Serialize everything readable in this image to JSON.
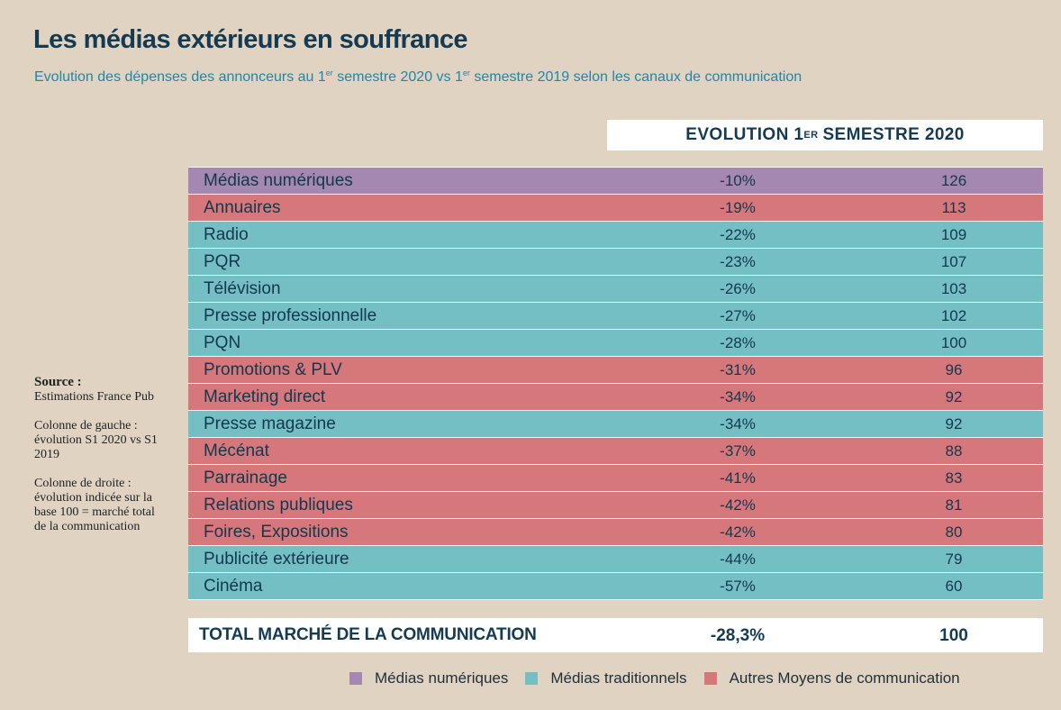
{
  "title": "Les médias extérieurs en souffrance",
  "subtitle": {
    "part1": "Evolution des dépenses des annonceurs au 1",
    "sup1": "er",
    "part2": " semestre 2020 vs  1",
    "sup2": "er",
    "part3": " semestre 2019 selon les canaux de communication"
  },
  "column_header": {
    "part1": "EVOLUTION 1",
    "sup": "ER",
    "part2": "SEMESTRE 2020"
  },
  "colors": {
    "Médias numériques": "#a488b1",
    "Médias traditionnels": "#74bfc3",
    "Autres Moyens de communication": "#d6777b"
  },
  "chart_data": {
    "type": "table",
    "title": "Les médias extérieurs en souffrance",
    "columns": [
      "",
      "EVOLUTION 1ER SEMESTRE 2020",
      ""
    ],
    "rows": [
      {
        "label": "Médias numériques",
        "evolution": "-10%",
        "index": "126",
        "category": "Médias numériques"
      },
      {
        "label": "Annuaires",
        "evolution": "-19%",
        "index": "113",
        "category": "Autres Moyens de communication"
      },
      {
        "label": "Radio",
        "evolution": "-22%",
        "index": "109",
        "category": "Médias traditionnels"
      },
      {
        "label": "PQR",
        "evolution": "-23%",
        "index": "107",
        "category": "Médias traditionnels"
      },
      {
        "label": "Télévision",
        "evolution": "-26%",
        "index": "103",
        "category": "Médias traditionnels"
      },
      {
        "label": "Presse professionnelle",
        "evolution": "-27%",
        "index": "102",
        "category": "Médias traditionnels"
      },
      {
        "label": "PQN",
        "evolution": "-28%",
        "index": "100",
        "category": "Médias traditionnels"
      },
      {
        "label": "Promotions & PLV",
        "evolution": "-31%",
        "index": "96",
        "category": "Autres Moyens de communication"
      },
      {
        "label": "Marketing direct",
        "evolution": "-34%",
        "index": "92",
        "category": "Autres Moyens de communication"
      },
      {
        "label": "Presse magazine",
        "evolution": "-34%",
        "index": "92",
        "category": "Médias traditionnels"
      },
      {
        "label": "Mécénat",
        "evolution": "-37%",
        "index": "88",
        "category": "Autres Moyens de communication"
      },
      {
        "label": "Parrainage",
        "evolution": "-41%",
        "index": "83",
        "category": "Autres Moyens de communication"
      },
      {
        "label": "Relations publiques",
        "evolution": "-42%",
        "index": "81",
        "category": "Autres Moyens de communication"
      },
      {
        "label": "Foires, Expositions",
        "evolution": "-42%",
        "index": "80",
        "category": "Autres Moyens de communication"
      },
      {
        "label": "Publicité extérieure",
        "evolution": "-44%",
        "index": "79",
        "category": "Médias traditionnels"
      },
      {
        "label": "Cinéma",
        "evolution": "-57%",
        "index": "60",
        "category": "Médias traditionnels"
      }
    ],
    "total": {
      "label": "TOTAL MARCHÉ DE LA COMMUNICATION",
      "evolution": "-28,3%",
      "index": "100"
    },
    "legend": [
      "Médias numériques",
      "Médias traditionnels",
      "Autres Moyens de communication"
    ]
  },
  "notes": {
    "source_label": "Source :",
    "source_text": "Estimations France Pub",
    "left_col": "Colonne de gauche : évolution S1 2020 vs S1 2019",
    "right_col": "Colonne de droite : évolution indicée sur la base 100 = marché total de la communication"
  }
}
